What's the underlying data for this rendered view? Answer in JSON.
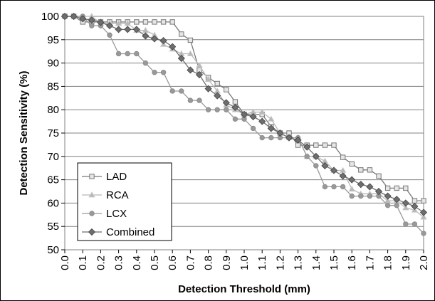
{
  "chart_data": {
    "type": "line",
    "xlabel": "Detection Threshold (mm)",
    "ylabel": "Detection Sensitivity (%)",
    "xlim": [
      0.0,
      2.0
    ],
    "ylim": [
      50,
      100
    ],
    "x_ticks": [
      "0.0",
      "0.1",
      "0.2",
      "0.3",
      "0.4",
      "0.5",
      "0.6",
      "0.7",
      "0.8",
      "0.9",
      "1.0",
      "1.1",
      "1.2",
      "1.3",
      "1.4",
      "1.5",
      "1.6",
      "1.7",
      "1.8",
      "1.9",
      "2.0"
    ],
    "y_ticks": [
      50,
      55,
      60,
      65,
      70,
      75,
      80,
      85,
      90,
      95,
      100
    ],
    "grid": "horizontal",
    "legend_position": "bottom-left",
    "x": [
      0.0,
      0.05,
      0.1,
      0.15,
      0.2,
      0.25,
      0.3,
      0.35,
      0.4,
      0.45,
      0.5,
      0.55,
      0.6,
      0.65,
      0.7,
      0.75,
      0.8,
      0.85,
      0.9,
      0.95,
      1.0,
      1.05,
      1.1,
      1.15,
      1.2,
      1.25,
      1.3,
      1.35,
      1.4,
      1.45,
      1.5,
      1.55,
      1.6,
      1.65,
      1.7,
      1.75,
      1.8,
      1.85,
      1.9,
      1.95,
      2.0
    ],
    "series": [
      {
        "name": "LAD",
        "color": "#777777",
        "marker": "square",
        "values": [
          100,
          100,
          98.8,
          98.8,
          98.8,
          98.8,
          98.8,
          98.8,
          98.8,
          98.8,
          98.8,
          98.8,
          98.8,
          96.2,
          94.9,
          88.5,
          86.9,
          85.6,
          84.3,
          81.7,
          79.0,
          79.0,
          79.0,
          76.4,
          75.0,
          75.0,
          72.4,
          72.4,
          72.4,
          72.4,
          72.4,
          69.8,
          68.4,
          67.1,
          67.1,
          65.8,
          63.2,
          63.2,
          63.2,
          60.5,
          60.5
        ]
      },
      {
        "name": "RCA",
        "color": "#b8b8b8",
        "marker": "triangle",
        "values": [
          100,
          100,
          100,
          100,
          98.5,
          98.5,
          98.5,
          98.5,
          97.0,
          97.0,
          96.0,
          94.0,
          93.0,
          92.0,
          92.0,
          89.5,
          86.5,
          84.0,
          81.0,
          80.0,
          79.0,
          79.5,
          79.5,
          78.0,
          75.0,
          74.0,
          74.0,
          70.0,
          70.0,
          69.0,
          67.0,
          67.0,
          63.0,
          62.0,
          62.0,
          62.0,
          60.5,
          60.5,
          59.0,
          58.5,
          57.0
        ]
      },
      {
        "name": "LCX",
        "color": "#999999",
        "marker": "circle",
        "values": [
          100,
          100,
          100,
          98.0,
          98.0,
          96.0,
          92.0,
          92.0,
          92.0,
          90.0,
          88.0,
          88.0,
          84.0,
          84.0,
          82.0,
          82.0,
          80.0,
          80.0,
          80.0,
          78.0,
          78.0,
          76.0,
          74.0,
          74.0,
          74.0,
          74.0,
          74.0,
          70.0,
          68.0,
          63.5,
          63.5,
          63.5,
          61.5,
          61.5,
          61.5,
          61.5,
          59.5,
          59.5,
          55.5,
          55.5,
          53.5
        ]
      },
      {
        "name": "Combined",
        "color": "#6e6e6e",
        "marker": "diamond",
        "values": [
          100,
          100,
          99.5,
          99.2,
          98.7,
          98.0,
          97.2,
          97.2,
          97.2,
          95.8,
          95.2,
          94.8,
          93.5,
          91.0,
          88.5,
          87.5,
          84.5,
          83.0,
          81.5,
          80.5,
          79.0,
          78.5,
          77.5,
          76.0,
          75.0,
          74.0,
          73.5,
          72.0,
          70.0,
          68.0,
          67.0,
          65.8,
          65.0,
          64.0,
          63.5,
          62.5,
          61.5,
          60.8,
          60.0,
          59.3,
          58.0
        ]
      }
    ]
  }
}
